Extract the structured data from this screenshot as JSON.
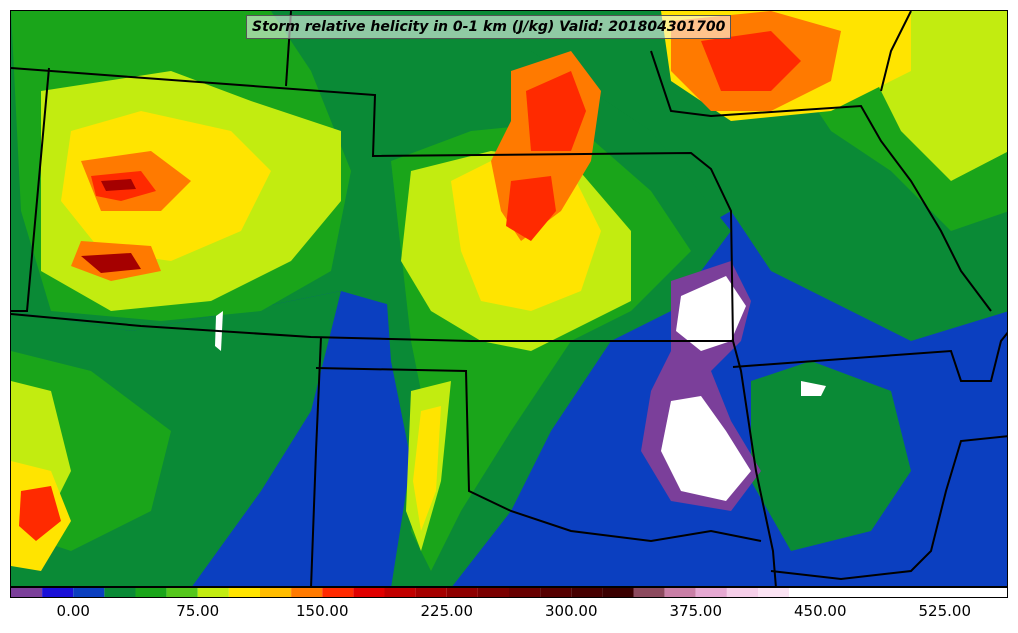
{
  "title": "Storm relative helicity in 0-1 km (J/kg) Valid: 201804301700",
  "colorbar": {
    "tick_labels": [
      "0.00",
      "75.00",
      "150.00",
      "225.00",
      "300.00",
      "375.00",
      "450.00",
      "525.00"
    ],
    "tick_values": [
      0,
      75,
      150,
      225,
      300,
      375,
      450,
      525
    ],
    "range": [
      -37.5,
      562.5
    ],
    "step": 18.75,
    "colors": [
      "#7b3f9a",
      "#1a10d8",
      "#0b3fc0",
      "#0a8a36",
      "#1aa51a",
      "#55c71c",
      "#c2ec10",
      "#ffe400",
      "#ffbc00",
      "#ff7a00",
      "#ff2a00",
      "#e00000",
      "#c10000",
      "#a50000",
      "#8e0000",
      "#7a0000",
      "#680000",
      "#560000",
      "#460000",
      "#3a0000",
      "#8c4a5e",
      "#c97fa6",
      "#e6a9d2",
      "#f6cfe9",
      "#fbe3f3",
      "#ffffff"
    ]
  },
  "map_colors": {
    "background": "#0b3fc0",
    "green_dark": "#0a8a36",
    "green": "#1aa51a",
    "green_light": "#55c71c",
    "yellow_green": "#c2ec10",
    "yellow": "#ffe400",
    "orange": "#ff7a00",
    "red": "#ff2a00",
    "dark_red": "#a50000",
    "purple": "#7b3f9a",
    "white": "#ffffff",
    "boundary": "#000000"
  }
}
